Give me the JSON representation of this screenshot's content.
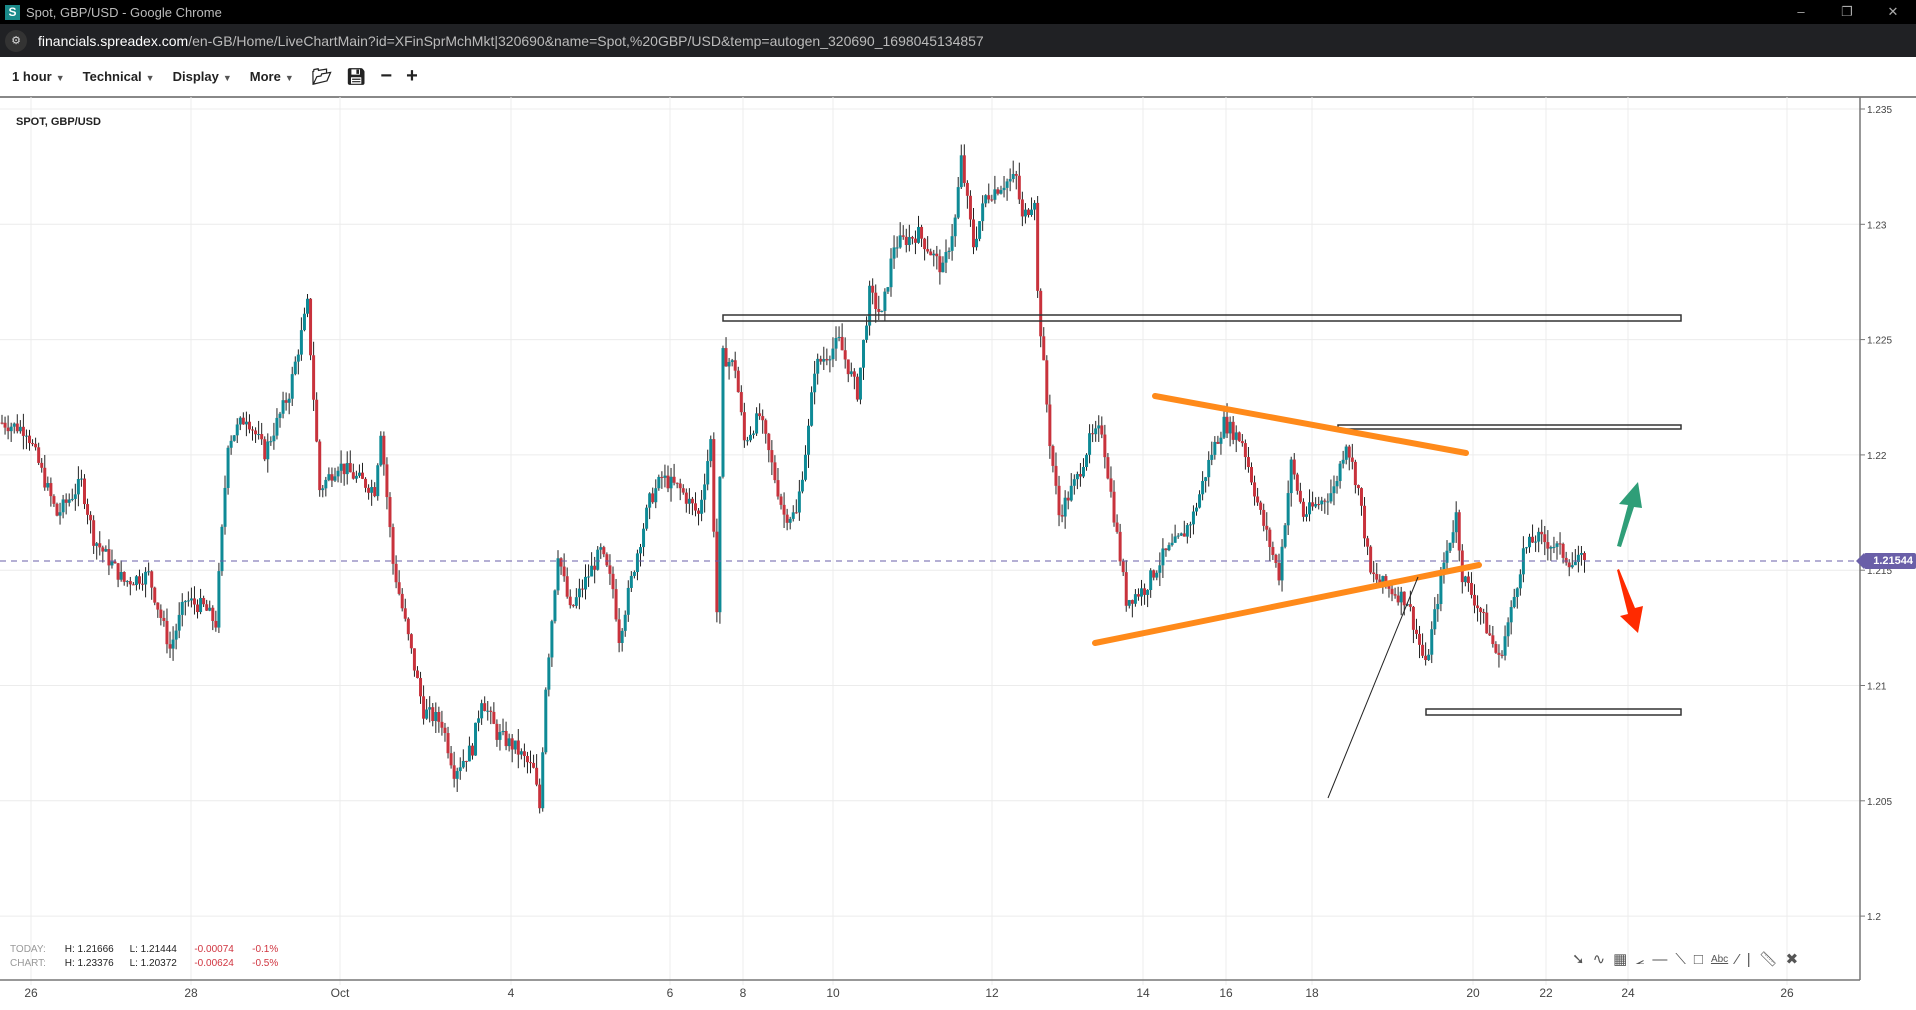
{
  "window": {
    "title": "Spot, GBP/USD - Google Chrome",
    "favicon": "S",
    "controls": [
      "–",
      "❐",
      "✕"
    ]
  },
  "browser": {
    "url_host": "financials.spreadex.com",
    "url_path": "/en-GB/Home/LiveChartMain?id=XFinSprMchMkt|320690&name=Spot,%20GBP/USD&temp=autogen_320690_1698045134857"
  },
  "toolbar": {
    "interval": "1 hour",
    "technical": "Technical",
    "display": "Display",
    "more": "More",
    "icons": [
      "open-folder-icon",
      "save-icon",
      "zoom-out-icon",
      "zoom-in-icon"
    ]
  },
  "chart": {
    "series_label": "SPOT, GBP/USD",
    "last_price": "1.21544",
    "colors": {
      "up": "#0e8a96",
      "down": "#c8323c",
      "price_line": "#6a5fa8",
      "trendline": "#ff8a1a",
      "arrow_up": "#2f9e78",
      "arrow_down": "#ff2a00"
    },
    "y_ticks": [
      "1.235",
      "1.23",
      "1.225",
      "1.22",
      "1.215",
      "1.21",
      "1.205",
      "1.2"
    ],
    "x_ticks": [
      "26",
      "28",
      "Oct",
      "4",
      "6",
      "8",
      "10",
      "12",
      "14",
      "16",
      "18",
      "20",
      "22",
      "24",
      "26"
    ]
  },
  "stats": {
    "today": {
      "label": "TODAY:",
      "high": "H: 1.21666",
      "low": "L: 1.21444",
      "change": "-0.00074",
      "pct": "-0.1%"
    },
    "chart": {
      "label": "CHART:",
      "high": "H: 1.23376",
      "low": "L: 1.20372",
      "change": "-0.00624",
      "pct": "-0.5%"
    }
  },
  "chart_data": {
    "type": "candlestick",
    "ylim": [
      1.2,
      1.235
    ],
    "last": 1.21544,
    "close_path": [
      [
        0,
        1.2214
      ],
      [
        8,
        1.2211
      ],
      [
        18,
        1.2174
      ],
      [
        26,
        1.2188
      ],
      [
        30,
        1.2164
      ],
      [
        40,
        1.2145
      ],
      [
        48,
        1.2148
      ],
      [
        55,
        1.2116
      ],
      [
        60,
        1.2137
      ],
      [
        66,
        1.2134
      ],
      [
        70,
        1.2127
      ],
      [
        74,
        1.2206
      ],
      [
        80,
        1.2217
      ],
      [
        86,
        1.2201
      ],
      [
        94,
        1.2227
      ],
      [
        100,
        1.2265
      ],
      [
        104,
        1.2185
      ],
      [
        110,
        1.2196
      ],
      [
        116,
        1.219
      ],
      [
        122,
        1.2185
      ],
      [
        124,
        1.2211
      ],
      [
        128,
        1.2153
      ],
      [
        132,
        1.2127
      ],
      [
        138,
        1.2089
      ],
      [
        144,
        1.2084
      ],
      [
        148,
        1.2063
      ],
      [
        154,
        1.2073
      ],
      [
        157,
        1.2095
      ],
      [
        162,
        1.2079
      ],
      [
        168,
        1.2073
      ],
      [
        174,
        1.2063
      ],
      [
        176,
        1.2047
      ],
      [
        178,
        1.21
      ],
      [
        182,
        1.2158
      ],
      [
        186,
        1.2132
      ],
      [
        192,
        1.2148
      ],
      [
        196,
        1.2158
      ],
      [
        200,
        1.2142
      ],
      [
        202,
        1.2121
      ],
      [
        208,
        1.2158
      ],
      [
        212,
        1.218
      ],
      [
        216,
        1.219
      ],
      [
        222,
        1.2185
      ],
      [
        228,
        1.2174
      ],
      [
        232,
        1.2206
      ],
      [
        234,
        1.2132
      ],
      [
        236,
        1.2243
      ],
      [
        240,
        1.2238
      ],
      [
        243,
        1.2206
      ],
      [
        248,
        1.2217
      ],
      [
        256,
        1.2174
      ],
      [
        260,
        1.2174
      ],
      [
        264,
        1.2211
      ],
      [
        266,
        1.2238
      ],
      [
        274,
        1.2249
      ],
      [
        280,
        1.2227
      ],
      [
        284,
        1.227
      ],
      [
        288,
        1.226
      ],
      [
        292,
        1.2291
      ],
      [
        300,
        1.2296
      ],
      [
        308,
        1.228
      ],
      [
        312,
        1.2302
      ],
      [
        314,
        1.2328
      ],
      [
        318,
        1.2291
      ],
      [
        322,
        1.2312
      ],
      [
        328,
        1.2318
      ],
      [
        332,
        1.232
      ],
      [
        334,
        1.2302
      ],
      [
        338,
        1.2312
      ],
      [
        339,
        1.227
      ],
      [
        341,
        1.2238
      ],
      [
        343,
        1.2206
      ],
      [
        346,
        1.2174
      ],
      [
        352,
        1.219
      ],
      [
        356,
        1.2206
      ],
      [
        360,
        1.2211
      ],
      [
        364,
        1.2174
      ],
      [
        368,
        1.2137
      ],
      [
        374,
        1.2142
      ],
      [
        380,
        1.2156
      ],
      [
        386,
        1.2164
      ],
      [
        390,
        1.2174
      ],
      [
        396,
        1.2201
      ],
      [
        400,
        1.2214
      ],
      [
        406,
        1.2206
      ],
      [
        412,
        1.2174
      ],
      [
        418,
        1.2148
      ],
      [
        422,
        1.2196
      ],
      [
        426,
        1.2174
      ],
      [
        432,
        1.218
      ],
      [
        436,
        1.2185
      ],
      [
        440,
        1.2206
      ],
      [
        444,
        1.2185
      ],
      [
        448,
        1.2148
      ],
      [
        454,
        1.2142
      ],
      [
        460,
        1.2137
      ],
      [
        466,
        1.2108
      ],
      [
        472,
        1.2153
      ],
      [
        476,
        1.2174
      ],
      [
        478,
        1.2148
      ],
      [
        484,
        1.2132
      ],
      [
        490,
        1.2111
      ],
      [
        494,
        1.2132
      ],
      [
        498,
        1.2158
      ],
      [
        502,
        1.2164
      ],
      [
        508,
        1.2161
      ],
      [
        514,
        1.2153
      ],
      [
        518,
        1.21544
      ]
    ]
  },
  "drawing_tools": [
    "arrow-icon",
    "curve-icon",
    "fib-grid-icon",
    "fan-icon",
    "horizontal-line-icon",
    "segment-icon",
    "rectangle-icon",
    "text-icon",
    "line-icon",
    "separator",
    "ruler-icon",
    "clear-drawings-icon"
  ],
  "drawing_tool_text": "Abc"
}
